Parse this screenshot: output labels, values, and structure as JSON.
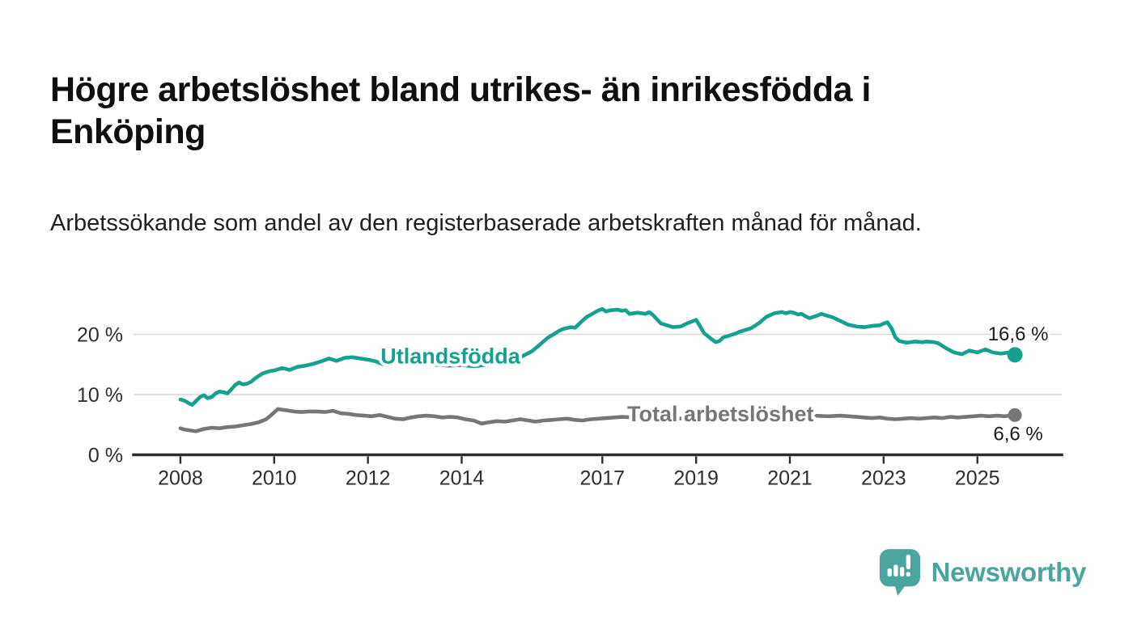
{
  "header": {
    "title": "Högre arbetslöshet bland utrikes- än inrikesfödda i Enköping",
    "subtitle": "Arbetssökande som andel av den registerbaserade arbetskraften månad för månad."
  },
  "footer": {
    "brand": "Newsworthy"
  },
  "colors": {
    "foreign_born": "#14a18f",
    "total": "#76767a",
    "logo_teal": "#4aa59f",
    "axis": "#2d2d2d",
    "grid": "#d7d7d7"
  },
  "chart_data": {
    "type": "line",
    "x_unit": "decimal_year",
    "x_domain": [
      2007.0,
      2026.8
    ],
    "ylim": [
      0,
      26
    ],
    "grid": "horizontal",
    "legend_position": "inline-labels",
    "y_ticks": [
      {
        "value": 0,
        "label": "0 %"
      },
      {
        "value": 10,
        "label": "10 %"
      },
      {
        "value": 20,
        "label": "20 %"
      }
    ],
    "x_ticks": [
      {
        "value": 2008,
        "label": "2008"
      },
      {
        "value": 2010,
        "label": "2010"
      },
      {
        "value": 2012,
        "label": "2012"
      },
      {
        "value": 2014,
        "label": "2014"
      },
      {
        "value": 2017,
        "label": "2017"
      },
      {
        "value": 2019,
        "label": "2019"
      },
      {
        "value": 2021,
        "label": "2021"
      },
      {
        "value": 2023,
        "label": "2023"
      },
      {
        "value": 2025,
        "label": "2025"
      }
    ],
    "series": [
      {
        "id": "utlandsfodda",
        "name": "Utlandsfödda",
        "color": "#14a18f",
        "end_value": 16.6,
        "end_label": "16,6 %",
        "end_label_side": "above",
        "end_dot_radius": 9.5,
        "label_anchor": {
          "x": 2012.27,
          "y": 16.4
        },
        "points": [
          [
            2008.0,
            9.2
          ],
          [
            2008.08,
            9.0
          ],
          [
            2008.17,
            8.6
          ],
          [
            2008.25,
            8.3
          ],
          [
            2008.33,
            8.9
          ],
          [
            2008.42,
            9.6
          ],
          [
            2008.5,
            9.9
          ],
          [
            2008.58,
            9.4
          ],
          [
            2008.67,
            9.6
          ],
          [
            2008.75,
            10.2
          ],
          [
            2008.83,
            10.5
          ],
          [
            2008.92,
            10.4
          ],
          [
            2009.0,
            10.2
          ],
          [
            2009.08,
            10.8
          ],
          [
            2009.17,
            11.6
          ],
          [
            2009.25,
            12.0
          ],
          [
            2009.33,
            11.7
          ],
          [
            2009.42,
            11.8
          ],
          [
            2009.5,
            12.1
          ],
          [
            2009.58,
            12.6
          ],
          [
            2009.67,
            13.1
          ],
          [
            2009.75,
            13.5
          ],
          [
            2009.83,
            13.7
          ],
          [
            2009.92,
            13.9
          ],
          [
            2010.0,
            14.0
          ],
          [
            2010.17,
            14.4
          ],
          [
            2010.33,
            14.1
          ],
          [
            2010.5,
            14.6
          ],
          [
            2010.67,
            14.8
          ],
          [
            2010.83,
            15.1
          ],
          [
            2011.0,
            15.5
          ],
          [
            2011.17,
            16.0
          ],
          [
            2011.33,
            15.6
          ],
          [
            2011.5,
            16.1
          ],
          [
            2011.67,
            16.2
          ],
          [
            2011.83,
            16.0
          ],
          [
            2012.0,
            15.8
          ],
          [
            2012.17,
            15.5
          ],
          [
            2012.33,
            15.0
          ],
          [
            2012.5,
            15.4
          ],
          [
            2012.75,
            15.2
          ],
          [
            2013.0,
            15.0
          ],
          [
            2013.25,
            15.1
          ],
          [
            2013.5,
            14.9
          ],
          [
            2013.75,
            14.8
          ],
          [
            2014.0,
            14.9
          ],
          [
            2014.25,
            14.7
          ],
          [
            2014.5,
            14.9
          ],
          [
            2014.75,
            15.1
          ],
          [
            2015.0,
            15.5
          ],
          [
            2015.25,
            16.2
          ],
          [
            2015.5,
            17.2
          ],
          [
            2015.67,
            18.3
          ],
          [
            2015.83,
            19.4
          ],
          [
            2016.0,
            20.2
          ],
          [
            2016.08,
            20.6
          ],
          [
            2016.17,
            20.9
          ],
          [
            2016.33,
            21.2
          ],
          [
            2016.42,
            21.1
          ],
          [
            2016.5,
            21.7
          ],
          [
            2016.58,
            22.3
          ],
          [
            2016.67,
            22.9
          ],
          [
            2016.83,
            23.6
          ],
          [
            2016.92,
            24.0
          ],
          [
            2017.0,
            24.2
          ],
          [
            2017.08,
            23.8
          ],
          [
            2017.17,
            24.0
          ],
          [
            2017.33,
            24.1
          ],
          [
            2017.42,
            23.9
          ],
          [
            2017.5,
            24.0
          ],
          [
            2017.58,
            23.4
          ],
          [
            2017.75,
            23.6
          ],
          [
            2017.92,
            23.4
          ],
          [
            2018.0,
            23.7
          ],
          [
            2018.08,
            23.2
          ],
          [
            2018.25,
            21.8
          ],
          [
            2018.42,
            21.4
          ],
          [
            2018.5,
            21.2
          ],
          [
            2018.67,
            21.3
          ],
          [
            2018.83,
            21.9
          ],
          [
            2019.0,
            22.4
          ],
          [
            2019.08,
            21.4
          ],
          [
            2019.17,
            20.2
          ],
          [
            2019.33,
            19.2
          ],
          [
            2019.42,
            18.7
          ],
          [
            2019.5,
            18.9
          ],
          [
            2019.58,
            19.5
          ],
          [
            2019.67,
            19.7
          ],
          [
            2019.83,
            20.1
          ],
          [
            2019.92,
            20.4
          ],
          [
            2020.0,
            20.6
          ],
          [
            2020.17,
            21.0
          ],
          [
            2020.33,
            21.8
          ],
          [
            2020.5,
            22.9
          ],
          [
            2020.67,
            23.5
          ],
          [
            2020.83,
            23.7
          ],
          [
            2020.92,
            23.5
          ],
          [
            2021.0,
            23.7
          ],
          [
            2021.08,
            23.6
          ],
          [
            2021.17,
            23.3
          ],
          [
            2021.25,
            23.4
          ],
          [
            2021.33,
            23.0
          ],
          [
            2021.42,
            22.7
          ],
          [
            2021.58,
            23.1
          ],
          [
            2021.67,
            23.4
          ],
          [
            2021.83,
            23.0
          ],
          [
            2021.92,
            22.8
          ],
          [
            2022.08,
            22.2
          ],
          [
            2022.25,
            21.6
          ],
          [
            2022.42,
            21.3
          ],
          [
            2022.58,
            21.2
          ],
          [
            2022.75,
            21.4
          ],
          [
            2022.92,
            21.5
          ],
          [
            2023.0,
            21.8
          ],
          [
            2023.08,
            22.0
          ],
          [
            2023.17,
            21.0
          ],
          [
            2023.25,
            19.5
          ],
          [
            2023.33,
            18.9
          ],
          [
            2023.5,
            18.6
          ],
          [
            2023.67,
            18.8
          ],
          [
            2023.83,
            18.7
          ],
          [
            2023.92,
            18.8
          ],
          [
            2024.08,
            18.7
          ],
          [
            2024.17,
            18.5
          ],
          [
            2024.33,
            17.7
          ],
          [
            2024.5,
            17.0
          ],
          [
            2024.67,
            16.7
          ],
          [
            2024.83,
            17.3
          ],
          [
            2025.0,
            17.0
          ],
          [
            2025.17,
            17.5
          ],
          [
            2025.33,
            17.0
          ],
          [
            2025.5,
            16.8
          ],
          [
            2025.67,
            17.0
          ],
          [
            2025.8,
            16.6
          ]
        ]
      },
      {
        "id": "total",
        "name": "Total arbetslöshet",
        "color": "#76767a",
        "end_value": 6.6,
        "end_label": "6,6 %",
        "end_label_side": "below",
        "end_dot_radius": 8.5,
        "label_anchor": {
          "x": 2017.53,
          "y": 6.8
        },
        "points": [
          [
            2008.0,
            4.4
          ],
          [
            2008.08,
            4.2
          ],
          [
            2008.17,
            4.1
          ],
          [
            2008.33,
            3.9
          ],
          [
            2008.5,
            4.3
          ],
          [
            2008.67,
            4.5
          ],
          [
            2008.83,
            4.4
          ],
          [
            2009.0,
            4.6
          ],
          [
            2009.17,
            4.7
          ],
          [
            2009.33,
            4.9
          ],
          [
            2009.5,
            5.1
          ],
          [
            2009.67,
            5.4
          ],
          [
            2009.83,
            5.9
          ],
          [
            2009.92,
            6.5
          ],
          [
            2010.08,
            7.6
          ],
          [
            2010.25,
            7.4
          ],
          [
            2010.42,
            7.2
          ],
          [
            2010.58,
            7.1
          ],
          [
            2010.75,
            7.2
          ],
          [
            2010.92,
            7.2
          ],
          [
            2011.08,
            7.1
          ],
          [
            2011.25,
            7.3
          ],
          [
            2011.42,
            6.9
          ],
          [
            2011.58,
            6.8
          ],
          [
            2011.75,
            6.6
          ],
          [
            2011.92,
            6.5
          ],
          [
            2012.08,
            6.4
          ],
          [
            2012.25,
            6.6
          ],
          [
            2012.42,
            6.3
          ],
          [
            2012.58,
            6.0
          ],
          [
            2012.75,
            5.9
          ],
          [
            2012.92,
            6.2
          ],
          [
            2013.08,
            6.4
          ],
          [
            2013.25,
            6.5
          ],
          [
            2013.42,
            6.4
          ],
          [
            2013.58,
            6.2
          ],
          [
            2013.75,
            6.3
          ],
          [
            2013.92,
            6.2
          ],
          [
            2014.08,
            5.9
          ],
          [
            2014.25,
            5.7
          ],
          [
            2014.42,
            5.2
          ],
          [
            2014.58,
            5.4
          ],
          [
            2014.75,
            5.6
          ],
          [
            2014.92,
            5.5
          ],
          [
            2015.08,
            5.7
          ],
          [
            2015.25,
            5.9
          ],
          [
            2015.42,
            5.7
          ],
          [
            2015.58,
            5.5
          ],
          [
            2015.75,
            5.7
          ],
          [
            2015.92,
            5.8
          ],
          [
            2016.08,
            5.9
          ],
          [
            2016.25,
            6.0
          ],
          [
            2016.42,
            5.8
          ],
          [
            2016.58,
            5.7
          ],
          [
            2016.75,
            5.9
          ],
          [
            2016.92,
            6.0
          ],
          [
            2017.08,
            6.1
          ],
          [
            2017.25,
            6.2
          ],
          [
            2017.42,
            6.3
          ],
          [
            2017.67,
            6.2
          ],
          [
            2018.0,
            6.1
          ],
          [
            2018.5,
            6.0
          ],
          [
            2019.0,
            6.1
          ],
          [
            2019.5,
            6.0
          ],
          [
            2020.0,
            6.5
          ],
          [
            2020.42,
            7.0
          ],
          [
            2020.83,
            6.9
          ],
          [
            2021.17,
            6.7
          ],
          [
            2021.5,
            6.5
          ],
          [
            2021.83,
            6.4
          ],
          [
            2022.08,
            6.5
          ],
          [
            2022.25,
            6.4
          ],
          [
            2022.42,
            6.3
          ],
          [
            2022.58,
            6.2
          ],
          [
            2022.75,
            6.1
          ],
          [
            2022.92,
            6.2
          ],
          [
            2023.08,
            6.0
          ],
          [
            2023.25,
            5.9
          ],
          [
            2023.42,
            6.0
          ],
          [
            2023.58,
            6.1
          ],
          [
            2023.75,
            6.0
          ],
          [
            2023.92,
            6.1
          ],
          [
            2024.08,
            6.2
          ],
          [
            2024.25,
            6.1
          ],
          [
            2024.42,
            6.3
          ],
          [
            2024.58,
            6.2
          ],
          [
            2024.75,
            6.3
          ],
          [
            2024.92,
            6.4
          ],
          [
            2025.08,
            6.5
          ],
          [
            2025.25,
            6.4
          ],
          [
            2025.42,
            6.5
          ],
          [
            2025.58,
            6.4
          ],
          [
            2025.8,
            6.6
          ]
        ]
      }
    ]
  }
}
